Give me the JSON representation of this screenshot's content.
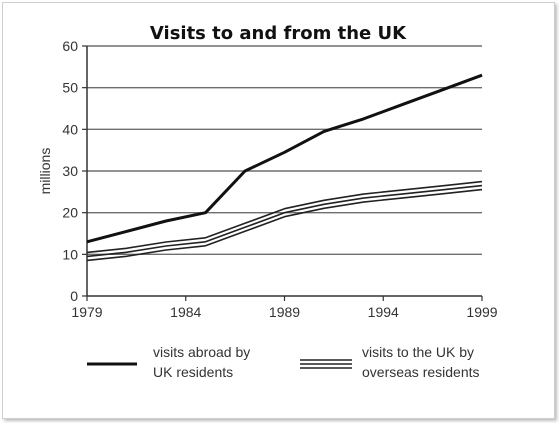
{
  "chart_data": {
    "type": "line",
    "title": "Visits to and from the UK",
    "xlabel": "",
    "ylabel": "millions",
    "xlim": [
      1979,
      1999
    ],
    "ylim": [
      0,
      60
    ],
    "x_ticks": [
      "1979",
      "1984",
      "1989",
      "1994",
      "1999"
    ],
    "y_ticks": [
      "0",
      "10",
      "20",
      "30",
      "40",
      "50",
      "60"
    ],
    "grid": "horizontal",
    "legend_position": "bottom",
    "series": [
      {
        "name": "visits abroad by UK residents",
        "name_lines": [
          "visits abroad by",
          "UK residents"
        ],
        "style": "thick-line",
        "color": "#111111",
        "x": [
          1979,
          1981,
          1983,
          1985,
          1987,
          1989,
          1991,
          1993,
          1995,
          1997,
          1999
        ],
        "y": [
          13,
          15.5,
          18,
          20,
          30,
          34.5,
          39.5,
          42.5,
          46,
          49.5,
          53
        ]
      },
      {
        "name": "visits to the UK by overseas residents",
        "name_lines": [
          "visits to the UK by",
          "overseas residents"
        ],
        "style": "triple-line",
        "color": "#222222",
        "x": [
          1979,
          1981,
          1983,
          1985,
          1987,
          1989,
          1991,
          1993,
          1995,
          1997,
          1999
        ],
        "y": [
          9.5,
          10.5,
          12,
          13,
          16.5,
          20,
          22,
          23.5,
          24.5,
          25.5,
          26.5
        ]
      }
    ]
  }
}
